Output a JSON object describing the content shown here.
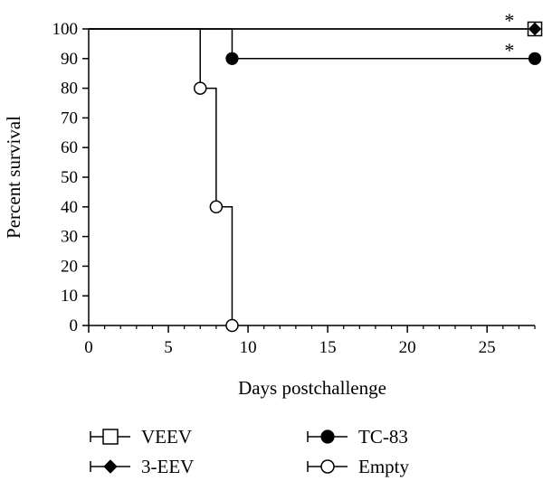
{
  "chart_data": {
    "type": "line",
    "step": true,
    "title": "",
    "xlabel": "Days postchallenge",
    "ylabel": "Percent survival",
    "xlim": [
      0,
      28
    ],
    "ylim": [
      0,
      100
    ],
    "xticks": [
      0,
      5,
      10,
      15,
      20,
      25
    ],
    "xtick_labels": [
      "0",
      "5",
      "10",
      "15",
      "20",
      "25"
    ],
    "yticks": [
      0,
      10,
      20,
      30,
      40,
      50,
      60,
      70,
      80,
      90,
      100
    ],
    "ytick_labels": [
      "0",
      "10",
      "20",
      "30",
      "40",
      "50",
      "60",
      "70",
      "80",
      "90",
      "100"
    ],
    "grid": false,
    "legend_position": "bottom",
    "series": [
      {
        "name": "VEEV",
        "marker": "open-square",
        "color": "#000000",
        "x": [
          0,
          28
        ],
        "y": [
          100,
          100
        ],
        "markers": [
          {
            "x": 28,
            "y": 100
          }
        ]
      },
      {
        "name": "3-EEV",
        "marker": "filled-diamond",
        "color": "#000000",
        "x": [
          0,
          28
        ],
        "y": [
          100,
          100
        ],
        "markers": [
          {
            "x": 28,
            "y": 100
          }
        ]
      },
      {
        "name": "TC-83",
        "marker": "filled-circle",
        "color": "#000000",
        "x": [
          0,
          9,
          28
        ],
        "y": [
          100,
          90,
          90
        ],
        "markers": [
          {
            "x": 9,
            "y": 90
          },
          {
            "x": 28,
            "y": 90
          }
        ]
      },
      {
        "name": "Empty",
        "marker": "open-circle",
        "color": "#000000",
        "x": [
          0,
          7,
          8,
          9
        ],
        "y": [
          100,
          80,
          40,
          0
        ],
        "markers": [
          {
            "x": 7,
            "y": 80
          },
          {
            "x": 8,
            "y": 40
          },
          {
            "x": 9,
            "y": 0
          }
        ]
      }
    ],
    "annotations": [
      {
        "text": "*",
        "x": 26.4,
        "y": 100
      },
      {
        "text": "*",
        "x": 26.4,
        "y": 90
      }
    ]
  }
}
